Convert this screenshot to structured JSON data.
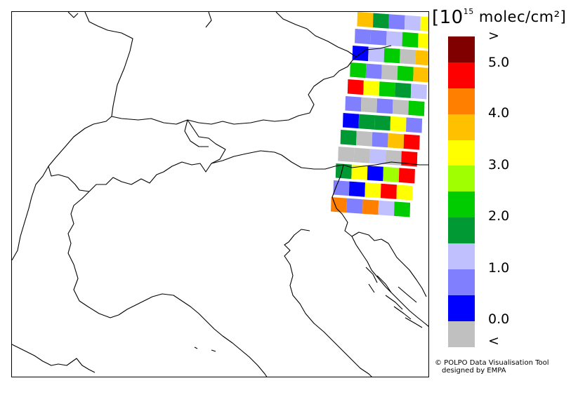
{
  "legend": {
    "unit_prefix": "[10",
    "unit_exponent": "15",
    "unit_suffix": " molec/cm²]",
    "levels": [
      {
        "color": "#800000"
      },
      {
        "color": "#ff0000"
      },
      {
        "color": "#ff8000"
      },
      {
        "color": "#ffc000"
      },
      {
        "color": "#ffff00"
      },
      {
        "color": "#a0ff00"
      },
      {
        "color": "#00cc00"
      },
      {
        "color": "#009933"
      },
      {
        "color": "#c0c0ff"
      },
      {
        "color": "#8080ff"
      },
      {
        "color": "#0000ff"
      },
      {
        "color": "#c0c0c0"
      }
    ],
    "labels": [
      ">",
      "5.0",
      "4.0",
      "3.0",
      "2.0",
      "1.0",
      "0.0",
      "<"
    ]
  },
  "swath_rows": [
    [
      "#ffc000",
      "#009933",
      "#8080ff",
      "#c0c0ff",
      "#ffff00"
    ],
    [
      "#8080ff",
      "#8080ff",
      "#c0c0ff",
      "#00cc00",
      "#ffff00"
    ],
    [
      "#0000ff",
      "#c0c0ff",
      "#00cc00",
      "#c0c0c0",
      "#ffc000"
    ],
    [
      "#00cc00",
      "#8080ff",
      "#c0c0c0",
      "#00cc00",
      "#ffc000"
    ],
    [
      "#ff0000",
      "#ffff00",
      "#00cc00",
      "#009933",
      "#c0c0ff"
    ],
    [
      "#8080ff",
      "#c0c0c0",
      "#8080ff",
      "#c0c0c0",
      "#00cc00"
    ],
    [
      "#0000ff",
      "#009933",
      "#009933",
      "#ffff00",
      "#8080ff"
    ],
    [
      "#009933",
      "#c0c0c0",
      "#8080ff",
      "#ffc000",
      "#ff0000"
    ],
    [
      "#c0c0c0",
      "#c0c0c0",
      "#c0c0ff",
      "#c0c0c0",
      "#ff0000"
    ],
    [
      "#009933",
      "#ffff00",
      "#0000ff",
      "#a0ff00",
      "#ff0000"
    ],
    [
      "#8080ff",
      "#0000ff",
      "#ffff00",
      "#ff0000",
      "#ffff00"
    ],
    [
      "#ff8000",
      "#8080ff",
      "#ff8000",
      "#c0c0ff",
      "#00cc00"
    ]
  ],
  "credit": {
    "line1": "© POLPO Data Visualisation Tool",
    "line2": "designed by EMPA"
  }
}
